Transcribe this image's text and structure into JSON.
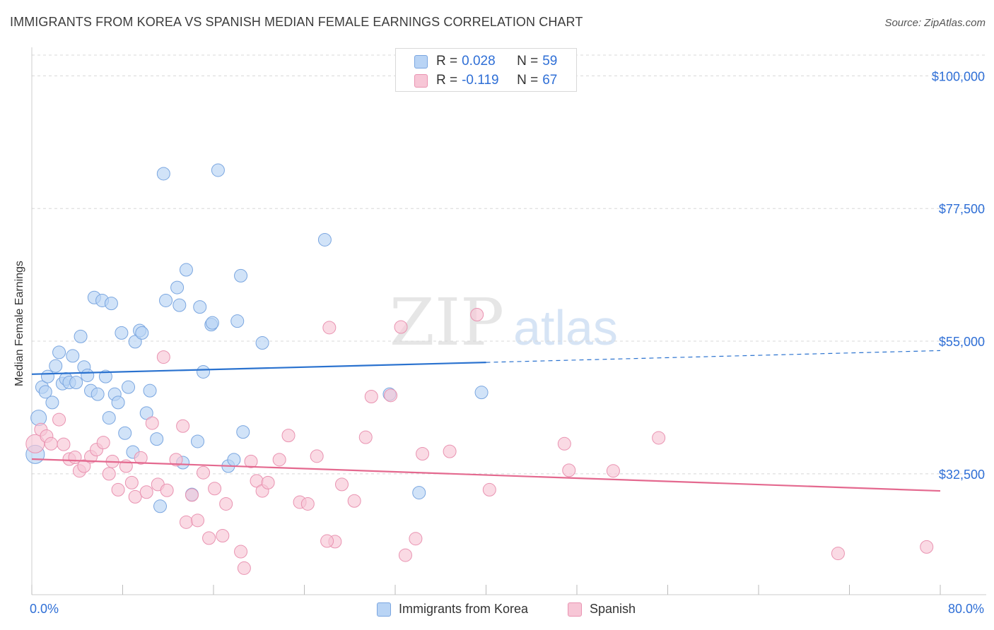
{
  "header": {
    "title": "IMMIGRANTS FROM KOREA VS SPANISH MEDIAN FEMALE EARNINGS CORRELATION CHART",
    "source": "Source: ZipAtlas.com"
  },
  "watermark": {
    "part1": "ZIP",
    "part2": "atlas"
  },
  "legend_top": {
    "rows": [
      {
        "r_label": "R =",
        "r_value": "0.028",
        "n_label": "N =",
        "n_value": "59"
      },
      {
        "r_label": "R =",
        "r_value": "-0.119",
        "n_label": "N =",
        "n_value": "67"
      }
    ]
  },
  "legend_bottom": {
    "items": [
      {
        "label": "Immigrants from Korea"
      },
      {
        "label": "Spanish"
      }
    ]
  },
  "colors": {
    "korea_fill": "#b9d4f5",
    "korea_stroke": "#7aa6e0",
    "korea_line": "#2a72cf",
    "spanish_fill": "#f7c6d6",
    "spanish_stroke": "#e993b1",
    "spanish_line": "#e4698f",
    "axis_text": "#2f6fd6",
    "grid": "#d8d8d8"
  },
  "chart_data": {
    "type": "scatter",
    "title": "IMMIGRANTS FROM KOREA VS SPANISH MEDIAN FEMALE EARNINGS CORRELATION CHART",
    "xlabel": "",
    "ylabel": "Median Female Earnings",
    "xlim": [
      0,
      80
    ],
    "ylim": [
      12000,
      104000
    ],
    "x_tick_labels": [
      "0.0%",
      "80.0%"
    ],
    "y_ticks": [
      {
        "value": 100000,
        "label": "$100,000"
      },
      {
        "value": 77500,
        "label": "$77,500"
      },
      {
        "value": 55000,
        "label": "$55,000"
      },
      {
        "value": 32500,
        "label": "$32,500"
      }
    ],
    "grid": true,
    "legend_position": "top-center",
    "series": [
      {
        "name": "Immigrants from Korea",
        "r": 0.028,
        "n": 59,
        "trend": {
          "x": [
            0,
            40,
            80
          ],
          "y": [
            49400,
            51400,
            53400
          ],
          "solid_until_x": 40
        },
        "points": [
          [
            0.3,
            35800
          ],
          [
            0.6,
            42000
          ],
          [
            0.9,
            47200
          ],
          [
            1.2,
            46400
          ],
          [
            1.4,
            49000
          ],
          [
            1.8,
            44600
          ],
          [
            2.1,
            50800
          ],
          [
            2.4,
            53100
          ],
          [
            2.7,
            47800
          ],
          [
            3.0,
            48600
          ],
          [
            3.3,
            48000
          ],
          [
            3.6,
            52500
          ],
          [
            3.9,
            48000
          ],
          [
            4.3,
            55800
          ],
          [
            4.6,
            50600
          ],
          [
            4.9,
            49200
          ],
          [
            5.2,
            46600
          ],
          [
            5.5,
            62400
          ],
          [
            5.8,
            46000
          ],
          [
            6.2,
            61900
          ],
          [
            6.5,
            49000
          ],
          [
            6.8,
            42000
          ],
          [
            7.0,
            61400
          ],
          [
            7.3,
            46000
          ],
          [
            7.6,
            44600
          ],
          [
            7.9,
            56400
          ],
          [
            8.2,
            39400
          ],
          [
            8.5,
            47200
          ],
          [
            8.9,
            36200
          ],
          [
            9.1,
            54900
          ],
          [
            9.5,
            56800
          ],
          [
            9.7,
            56400
          ],
          [
            10.1,
            42800
          ],
          [
            10.4,
            46600
          ],
          [
            11.0,
            38400
          ],
          [
            11.3,
            27000
          ],
          [
            11.6,
            83400
          ],
          [
            11.8,
            61900
          ],
          [
            12.8,
            64100
          ],
          [
            13.0,
            61100
          ],
          [
            13.3,
            34400
          ],
          [
            13.6,
            67100
          ],
          [
            14.1,
            29000
          ],
          [
            14.6,
            38000
          ],
          [
            14.8,
            60800
          ],
          [
            15.1,
            49800
          ],
          [
            15.8,
            57800
          ],
          [
            15.9,
            58100
          ],
          [
            16.4,
            84000
          ],
          [
            17.3,
            33800
          ],
          [
            17.8,
            34900
          ],
          [
            18.1,
            58400
          ],
          [
            18.4,
            66100
          ],
          [
            18.6,
            39600
          ],
          [
            20.3,
            54700
          ],
          [
            25.8,
            72200
          ],
          [
            31.5,
            46000
          ],
          [
            34.1,
            29300
          ],
          [
            39.6,
            46300
          ]
        ]
      },
      {
        "name": "Spanish",
        "r": -0.119,
        "n": 67,
        "trend": {
          "x": [
            0,
            80
          ],
          "y": [
            35000,
            29600
          ]
        },
        "points": [
          [
            0.3,
            37600
          ],
          [
            0.8,
            40000
          ],
          [
            1.3,
            38900
          ],
          [
            1.7,
            37600
          ],
          [
            2.4,
            41700
          ],
          [
            2.8,
            37500
          ],
          [
            3.3,
            35000
          ],
          [
            3.8,
            35300
          ],
          [
            4.2,
            33000
          ],
          [
            4.6,
            33800
          ],
          [
            5.2,
            35400
          ],
          [
            5.7,
            36600
          ],
          [
            6.3,
            37800
          ],
          [
            6.8,
            32500
          ],
          [
            7.1,
            34600
          ],
          [
            7.6,
            29800
          ],
          [
            8.3,
            33800
          ],
          [
            8.8,
            31000
          ],
          [
            9.1,
            28600
          ],
          [
            9.6,
            35200
          ],
          [
            10.1,
            29400
          ],
          [
            10.6,
            41100
          ],
          [
            11.1,
            30700
          ],
          [
            11.6,
            52300
          ],
          [
            11.9,
            29700
          ],
          [
            12.7,
            34900
          ],
          [
            13.3,
            40600
          ],
          [
            13.6,
            24300
          ],
          [
            14.1,
            28900
          ],
          [
            14.6,
            24600
          ],
          [
            15.1,
            32700
          ],
          [
            15.6,
            21600
          ],
          [
            16.1,
            30000
          ],
          [
            16.8,
            22000
          ],
          [
            17.1,
            27400
          ],
          [
            18.4,
            19300
          ],
          [
            18.7,
            16500
          ],
          [
            19.3,
            34600
          ],
          [
            19.8,
            31300
          ],
          [
            20.3,
            29600
          ],
          [
            20.8,
            31000
          ],
          [
            21.8,
            34900
          ],
          [
            22.6,
            39000
          ],
          [
            23.6,
            27700
          ],
          [
            24.3,
            27400
          ],
          [
            25.1,
            35500
          ],
          [
            26.2,
            57300
          ],
          [
            26.7,
            21000
          ],
          [
            27.3,
            30700
          ],
          [
            28.4,
            27900
          ],
          [
            29.4,
            38700
          ],
          [
            29.9,
            45600
          ],
          [
            31.6,
            45800
          ],
          [
            32.5,
            57400
          ],
          [
            32.9,
            18700
          ],
          [
            33.8,
            21500
          ],
          [
            34.4,
            35900
          ],
          [
            36.8,
            36300
          ],
          [
            39.2,
            59500
          ],
          [
            40.3,
            29800
          ],
          [
            46.9,
            37600
          ],
          [
            47.3,
            33100
          ],
          [
            51.2,
            33000
          ],
          [
            55.2,
            38600
          ],
          [
            71.0,
            19000
          ],
          [
            78.8,
            20100
          ],
          [
            26.0,
            21100
          ]
        ]
      }
    ]
  }
}
